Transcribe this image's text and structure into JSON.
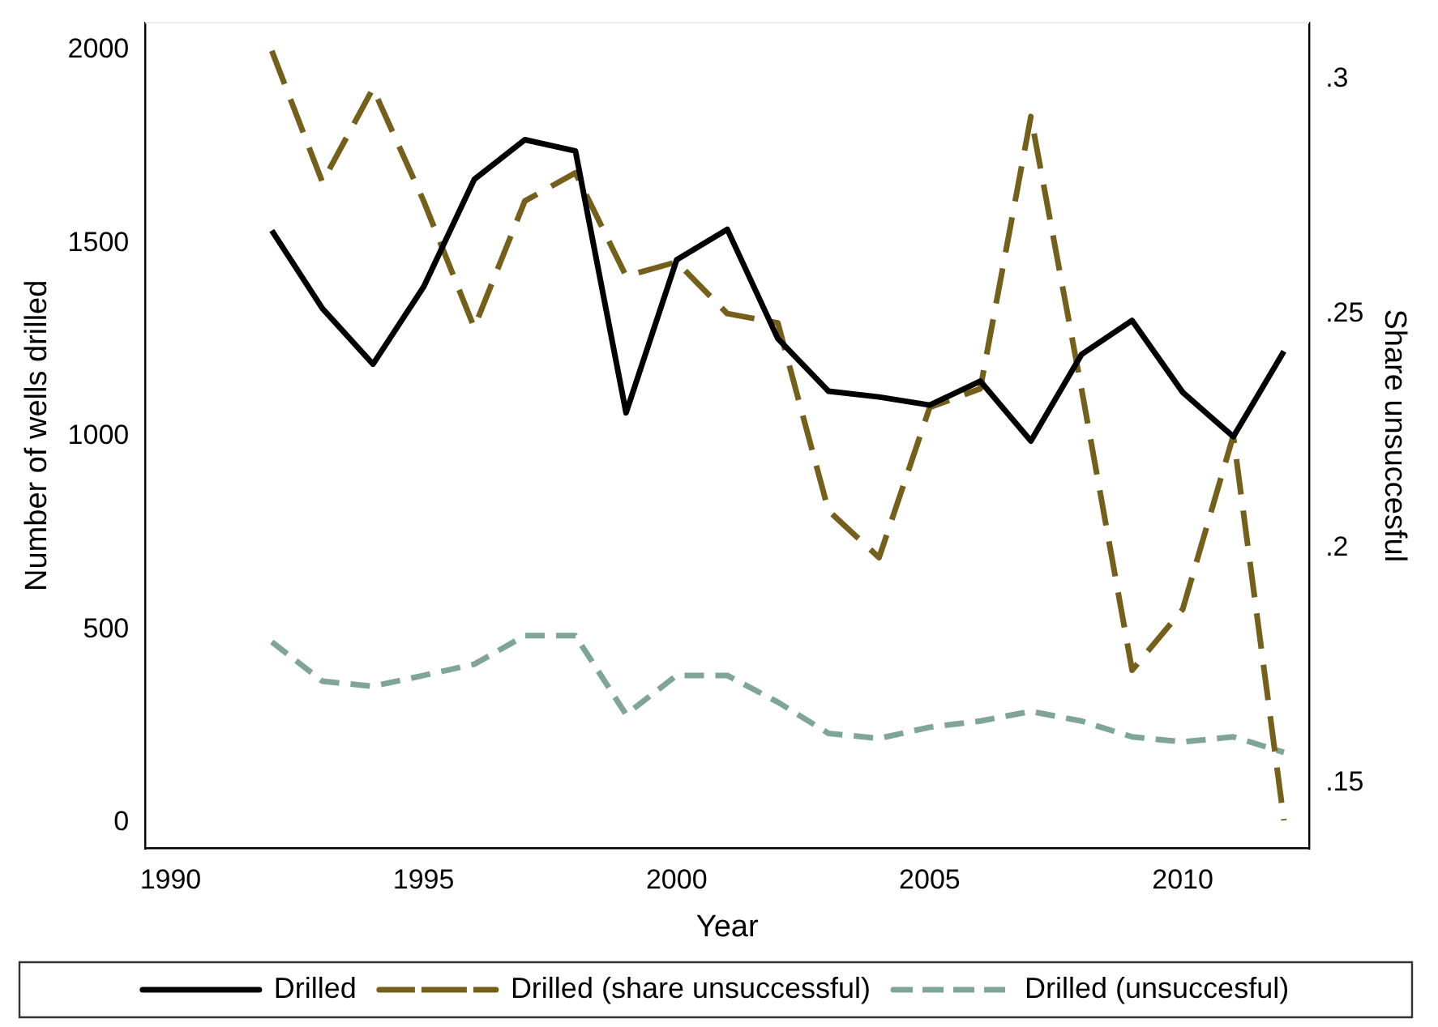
{
  "chart_data": {
    "type": "line",
    "xlabel": "Year",
    "ylabel": "Number of wells drilled",
    "y2label": "Share unsuccesful",
    "x": [
      1992,
      1993,
      1994,
      1995,
      1996,
      1997,
      1998,
      1999,
      2000,
      2001,
      2002,
      2003,
      2004,
      2005,
      2006,
      2007,
      2008,
      2009,
      2010,
      2011,
      2012
    ],
    "xlim": [
      1989.5,
      2012.5
    ],
    "xticks": [
      1990,
      1995,
      2000,
      2005,
      2010
    ],
    "ylim": [
      -67,
      2071
    ],
    "yticks": [
      0,
      500,
      1000,
      1500,
      2000
    ],
    "y2lim": [
      0.136,
      0.312
    ],
    "y2ticks": [
      {
        "value": 0.15,
        "label": ".15"
      },
      {
        "value": 0.2,
        "label": ".2"
      },
      {
        "value": 0.25,
        "label": ".25"
      },
      {
        "value": 0.3,
        "label": ".3"
      }
    ],
    "legend": "bottom",
    "marker": "none",
    "series": [
      {
        "name": "Drilled",
        "color": "#000000",
        "line_style": "solid",
        "values": [
          1533,
          1331,
          1187,
          1387,
          1665,
          1768,
          1739,
          1061,
          1457,
          1536,
          1253,
          1117,
          1102,
          1081,
          1143,
          988,
          1212,
          1300,
          1114,
          999,
          1220
        ]
      },
      {
        "name": "Drilled (share unsuccessful)",
        "color": "#75601b",
        "line_style": "dashed",
        "axis": "y2",
        "values": [
          0.306,
          0.278,
          0.298,
          0.274,
          0.247,
          0.274,
          0.28,
          0.258,
          0.261,
          0.25,
          0.248,
          0.208,
          0.198,
          0.23,
          0.234,
          0.292,
          0.234,
          0.174,
          0.187,
          0.224,
          0.142
        ]
      },
      {
        "name": "Drilled (unsuccesful)",
        "color": "#7ea597",
        "line_style": "dotted",
        "values": [
          468,
          366,
          353,
          381,
          410,
          484,
          484,
          280,
          381,
          381,
          312,
          231,
          218,
          247,
          263,
          288,
          263,
          222,
          209,
          222,
          182
        ]
      }
    ]
  }
}
